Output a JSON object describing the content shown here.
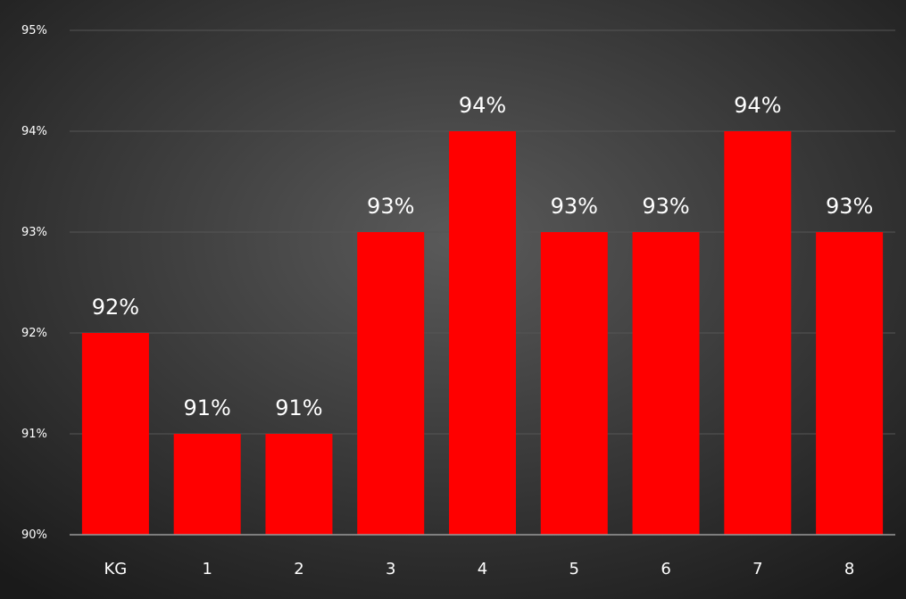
{
  "chart_data": {
    "type": "bar",
    "title": "",
    "xlabel": "",
    "ylabel": "",
    "categories": [
      "KG",
      "1",
      "2",
      "3",
      "4",
      "5",
      "6",
      "7",
      "8"
    ],
    "values": [
      92,
      91,
      91,
      93,
      94,
      93,
      93,
      94,
      93
    ],
    "data_labels": [
      "92%",
      "91%",
      "91%",
      "93%",
      "94%",
      "93%",
      "93%",
      "94%",
      "93%"
    ],
    "ylim": [
      90,
      95
    ],
    "yticks": [
      90,
      91,
      92,
      93,
      94,
      95
    ],
    "ytick_labels": [
      "90%",
      "91%",
      "92%",
      "93%",
      "94%",
      "95%"
    ],
    "grid": true,
    "legend": "none",
    "colors": {
      "bar": "#ff0000",
      "background_center": "#5a5a5a",
      "background_edge": "#1a1a1a",
      "gridline": "#555555",
      "axis": "#9a9a9a",
      "text": "#ffffff"
    }
  }
}
